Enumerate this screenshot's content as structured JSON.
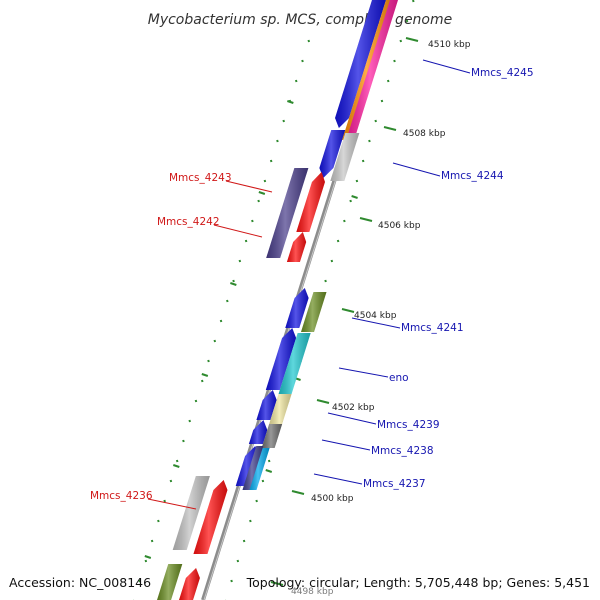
{
  "title": "Mycobacterium sp. MCS, complete genome",
  "footer": {
    "accession": "Accession: NC_008146",
    "summary": "Topology: circular; Length: 5,705,448 bp; Genes: 5,451"
  },
  "colors": {
    "backbone": "#8c8c8c",
    "tick": "#2f8a2f",
    "forward_label": "#1515b0",
    "reverse_label": "#d01818"
  },
  "ticks": [
    {
      "label": "4510 kbp"
    },
    {
      "label": "4508 kbp"
    },
    {
      "label": "4506 kbp"
    },
    {
      "label": "4504 kbp"
    },
    {
      "label": "4502 kbp"
    },
    {
      "label": "4500 kbp"
    },
    {
      "label": "4498 kbp"
    }
  ],
  "genes": [
    {
      "id": "g4245",
      "label": "Mmcs_4245",
      "strand": "forward",
      "color": "#1212e0"
    },
    {
      "id": "g4244",
      "label": "Mmcs_4244",
      "strand": "forward",
      "color": "#1212e0"
    },
    {
      "id": "g4243",
      "label": "Mmcs_4243",
      "strand": "reverse",
      "color": "#ff1010"
    },
    {
      "id": "g4242",
      "label": "Mmcs_4242",
      "strand": "reverse",
      "color": "#ff1010"
    },
    {
      "id": "g4241",
      "label": "Mmcs_4241",
      "strand": "forward",
      "color": "#1212e0"
    },
    {
      "id": "geno",
      "label": "eno",
      "strand": "forward",
      "color": "#1212e0"
    },
    {
      "id": "g4239",
      "label": "Mmcs_4239",
      "strand": "forward",
      "color": "#1212e0"
    },
    {
      "id": "g4238",
      "label": "Mmcs_4238",
      "strand": "forward",
      "color": "#1212e0"
    },
    {
      "id": "g4237",
      "label": "Mmcs_4237",
      "strand": "forward",
      "color": "#1212e0"
    },
    {
      "id": "g4236",
      "label": "Mmcs_4236",
      "strand": "reverse",
      "color": "#ff1010"
    }
  ],
  "legend": {}
}
